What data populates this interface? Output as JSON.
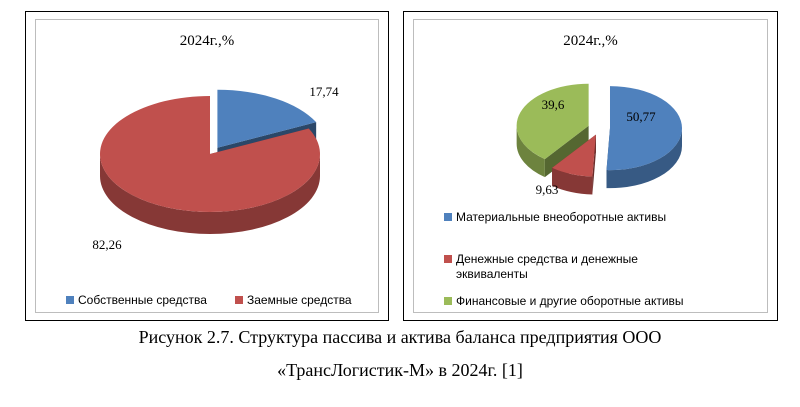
{
  "chart_data": [
    {
      "type": "pie",
      "title": "2024г.,%",
      "categories": [
        "Собственные средства",
        "Заемные средства"
      ],
      "values": [
        17.74,
        82.26
      ],
      "data_labels": [
        "17,74",
        "82,26"
      ],
      "colors": [
        "#4f81bd",
        "#c0504d"
      ],
      "exploded": true,
      "legend": "bottom"
    },
    {
      "type": "pie",
      "title": "2024г.,%",
      "categories": [
        "Материальные внеоборотные активы",
        "Денежные средства и денежные эквиваленты",
        "Финансовые и другие оборотные активы"
      ],
      "legend_lines": [
        [
          "Материальные внеоборотные активы"
        ],
        [
          "Денежные средства и денежные",
          "эквиваленты"
        ],
        [
          "Финансовые и другие оборотные активы"
        ]
      ],
      "values": [
        50.77,
        9.63,
        39.6
      ],
      "data_labels": [
        "50,77",
        "9,63",
        "39,6"
      ],
      "colors": [
        "#4f81bd",
        "#c0504d",
        "#9bbb59"
      ],
      "exploded": true,
      "legend": "right-bottom"
    }
  ],
  "caption": {
    "line1": "Рисунок 2.7. Структура пассива и актива баланса предприятия ООО",
    "line2": "«ТрансЛогистик-М» в 2024г. [1]"
  }
}
